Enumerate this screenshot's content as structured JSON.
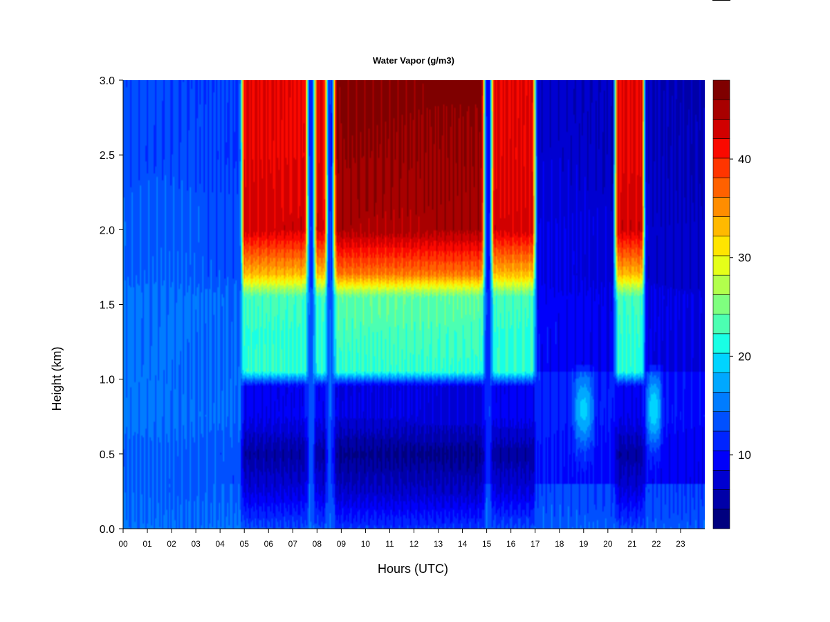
{
  "chart_data": {
    "type": "heatmap",
    "title": "Water Vapor (g/m3)",
    "xlabel": "Hours (UTC)",
    "ylabel": "Height (km)",
    "xlim": [
      0,
      24
    ],
    "ylim": [
      0,
      3
    ],
    "x_ticks": [
      0,
      1,
      2,
      3,
      4,
      5,
      6,
      7,
      8,
      9,
      10,
      11,
      12,
      13,
      14,
      15,
      16,
      17,
      18,
      19,
      20,
      21,
      22,
      23
    ],
    "x_tick_labels": [
      "00",
      "01",
      "02",
      "03",
      "04",
      "05",
      "06",
      "07",
      "08",
      "09",
      "10",
      "11",
      "12",
      "13",
      "14",
      "15",
      "16",
      "17",
      "18",
      "19",
      "20",
      "21",
      "22",
      "23"
    ],
    "y_ticks": [
      0.0,
      0.5,
      1.0,
      1.5,
      2.0,
      2.5,
      3.0
    ],
    "y_tick_labels": [
      "0.0",
      "0.5",
      "1.0",
      "1.5",
      "2.0",
      "2.5",
      "3.0"
    ],
    "colorbar": {
      "min": 2.5,
      "max": 48,
      "ticks": [
        10,
        20,
        30,
        40
      ],
      "tick_labels": [
        "10",
        "20",
        "30",
        "40"
      ],
      "levels": 18,
      "colors": [
        "#00007f",
        "#0000a8",
        "#0000d1",
        "#0000fa",
        "#0024ff",
        "#0050ff",
        "#007cff",
        "#00a8ff",
        "#00d4ff",
        "#19ffe5",
        "#4cffb2",
        "#7fff7f",
        "#b2ff4c",
        "#e5ff19",
        "#ffe500",
        "#ffb900",
        "#ff8d00",
        "#ff6100",
        "#ff3500",
        "#fa0900",
        "#d10000",
        "#a80000",
        "#7f0000"
      ]
    },
    "height_profiles": {
      "heights_km": [
        0.0,
        0.25,
        0.5,
        0.75,
        0.95,
        1.05,
        1.3,
        1.55,
        1.7,
        2.0,
        2.5,
        3.0
      ],
      "dry_regime": [
        15,
        14,
        14,
        15,
        15,
        15,
        15,
        15,
        14,
        14,
        13,
        13
      ],
      "humid_regime": [
        13,
        8,
        5,
        9,
        9,
        22,
        22,
        23,
        33,
        43,
        42,
        42
      ],
      "peak_regime": [
        12,
        7,
        4,
        8,
        8,
        22,
        23,
        24,
        36,
        45,
        46,
        47
      ]
    },
    "humid_periods_utc": [
      {
        "start": 5.0,
        "end": 7.5,
        "peak": 43
      },
      {
        "start": 8.0,
        "end": 8.3,
        "peak": 38
      },
      {
        "start": 8.8,
        "end": 14.8,
        "peak": 47
      },
      {
        "start": 15.3,
        "end": 16.9,
        "peak": 43
      },
      {
        "start": 20.4,
        "end": 21.4,
        "peak": 42
      }
    ],
    "moist_lower_layer_periods_utc": [
      {
        "start": 18.6,
        "end": 19.4,
        "value_0_8km": 19
      },
      {
        "start": 21.6,
        "end": 22.2,
        "value_0_8km": 20
      }
    ]
  }
}
